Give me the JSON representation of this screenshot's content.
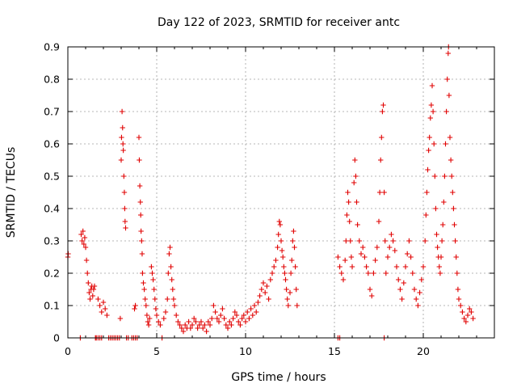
{
  "chart_data": {
    "type": "scatter",
    "title": "Day 122 of 2023, SRMTID for receiver antc",
    "xlabel": "GPS time / hours",
    "ylabel": "SRMTID / TECUs",
    "xlim": [
      0,
      24
    ],
    "ylim": [
      0,
      0.9
    ],
    "x_ticks": [
      0,
      5,
      10,
      15,
      20
    ],
    "y_ticks": [
      0,
      0.1,
      0.2,
      0.3,
      0.4,
      0.5,
      0.6,
      0.7,
      0.8,
      0.9
    ],
    "grid": true,
    "marker": "+",
    "series": [
      {
        "name": "SRMTID",
        "color": "#e00000",
        "points": [
          [
            0.0,
            0.25
          ],
          [
            0.02,
            0.26
          ],
          [
            0.7,
            0.0
          ],
          [
            0.75,
            0.32
          ],
          [
            0.8,
            0.3
          ],
          [
            0.85,
            0.33
          ],
          [
            0.9,
            0.29
          ],
          [
            0.95,
            0.31
          ],
          [
            1.0,
            0.28
          ],
          [
            1.05,
            0.24
          ],
          [
            1.1,
            0.2
          ],
          [
            1.15,
            0.17
          ],
          [
            1.2,
            0.14
          ],
          [
            1.25,
            0.12
          ],
          [
            1.3,
            0.15
          ],
          [
            1.35,
            0.16
          ],
          [
            1.4,
            0.13
          ],
          [
            1.45,
            0.15
          ],
          [
            1.5,
            0.16
          ],
          [
            1.55,
            0.0
          ],
          [
            1.6,
            0.0
          ],
          [
            1.7,
            0.0
          ],
          [
            1.8,
            0.0
          ],
          [
            1.9,
            0.0
          ],
          [
            1.7,
            0.12
          ],
          [
            1.8,
            0.1
          ],
          [
            1.9,
            0.08
          ],
          [
            2.0,
            0.11
          ],
          [
            2.1,
            0.09
          ],
          [
            2.2,
            0.07
          ],
          [
            2.3,
            0.0
          ],
          [
            2.4,
            0.0
          ],
          [
            2.5,
            0.0
          ],
          [
            2.6,
            0.0
          ],
          [
            2.7,
            0.0
          ],
          [
            2.8,
            0.0
          ],
          [
            2.9,
            0.0
          ],
          [
            2.95,
            0.06
          ],
          [
            3.0,
            0.55
          ],
          [
            3.02,
            0.62
          ],
          [
            3.05,
            0.7
          ],
          [
            3.08,
            0.65
          ],
          [
            3.1,
            0.6
          ],
          [
            3.12,
            0.58
          ],
          [
            3.15,
            0.5
          ],
          [
            3.18,
            0.45
          ],
          [
            3.2,
            0.4
          ],
          [
            3.22,
            0.36
          ],
          [
            3.25,
            0.34
          ],
          [
            3.3,
            0.0
          ],
          [
            3.4,
            0.0
          ],
          [
            3.6,
            0.0
          ],
          [
            3.7,
            0.0
          ],
          [
            3.8,
            0.0
          ],
          [
            3.9,
            0.0
          ],
          [
            3.75,
            0.09
          ],
          [
            3.8,
            0.1
          ],
          [
            4.0,
            0.62
          ],
          [
            4.02,
            0.55
          ],
          [
            4.05,
            0.47
          ],
          [
            4.08,
            0.42
          ],
          [
            4.1,
            0.38
          ],
          [
            4.12,
            0.33
          ],
          [
            4.15,
            0.3
          ],
          [
            4.18,
            0.26
          ],
          [
            4.2,
            0.2
          ],
          [
            4.25,
            0.17
          ],
          [
            4.3,
            0.15
          ],
          [
            4.35,
            0.12
          ],
          [
            4.4,
            0.1
          ],
          [
            4.45,
            0.07
          ],
          [
            4.5,
            0.05
          ],
          [
            4.55,
            0.04
          ],
          [
            4.6,
            0.06
          ],
          [
            4.7,
            0.22
          ],
          [
            4.75,
            0.2
          ],
          [
            4.8,
            0.18
          ],
          [
            4.85,
            0.15
          ],
          [
            4.9,
            0.12
          ],
          [
            4.95,
            0.09
          ],
          [
            5.0,
            0.07
          ],
          [
            5.1,
            0.05
          ],
          [
            5.2,
            0.04
          ],
          [
            5.3,
            0.0
          ],
          [
            5.4,
            0.06
          ],
          [
            5.5,
            0.08
          ],
          [
            5.6,
            0.12
          ],
          [
            5.65,
            0.2
          ],
          [
            5.7,
            0.26
          ],
          [
            5.75,
            0.28
          ],
          [
            5.8,
            0.22
          ],
          [
            5.85,
            0.18
          ],
          [
            5.9,
            0.15
          ],
          [
            5.95,
            0.12
          ],
          [
            6.0,
            0.1
          ],
          [
            6.1,
            0.07
          ],
          [
            6.2,
            0.05
          ],
          [
            6.3,
            0.04
          ],
          [
            6.4,
            0.03
          ],
          [
            6.5,
            0.02
          ],
          [
            6.6,
            0.04
          ],
          [
            6.7,
            0.03
          ],
          [
            6.8,
            0.05
          ],
          [
            6.9,
            0.03
          ],
          [
            7.0,
            0.04
          ],
          [
            7.1,
            0.06
          ],
          [
            7.2,
            0.05
          ],
          [
            7.3,
            0.03
          ],
          [
            7.4,
            0.04
          ],
          [
            7.5,
            0.05
          ],
          [
            7.6,
            0.03
          ],
          [
            7.7,
            0.04
          ],
          [
            7.8,
            0.02
          ],
          [
            7.9,
            0.05
          ],
          [
            8.0,
            0.04
          ],
          [
            8.1,
            0.06
          ],
          [
            8.2,
            0.1
          ],
          [
            8.3,
            0.08
          ],
          [
            8.4,
            0.06
          ],
          [
            8.5,
            0.05
          ],
          [
            8.6,
            0.07
          ],
          [
            8.7,
            0.09
          ],
          [
            8.8,
            0.06
          ],
          [
            8.9,
            0.04
          ],
          [
            9.0,
            0.03
          ],
          [
            9.1,
            0.05
          ],
          [
            9.2,
            0.04
          ],
          [
            9.3,
            0.06
          ],
          [
            9.4,
            0.08
          ],
          [
            9.5,
            0.07
          ],
          [
            9.6,
            0.05
          ],
          [
            9.7,
            0.04
          ],
          [
            9.8,
            0.06
          ],
          [
            9.9,
            0.07
          ],
          [
            10.0,
            0.05
          ],
          [
            10.1,
            0.08
          ],
          [
            10.2,
            0.06
          ],
          [
            10.3,
            0.09
          ],
          [
            10.4,
            0.07
          ],
          [
            10.5,
            0.1
          ],
          [
            10.6,
            0.08
          ],
          [
            10.7,
            0.11
          ],
          [
            10.8,
            0.13
          ],
          [
            10.9,
            0.15
          ],
          [
            11.0,
            0.17
          ],
          [
            11.1,
            0.14
          ],
          [
            11.2,
            0.16
          ],
          [
            11.3,
            0.12
          ],
          [
            11.4,
            0.18
          ],
          [
            11.5,
            0.2
          ],
          [
            11.6,
            0.22
          ],
          [
            11.7,
            0.24
          ],
          [
            11.8,
            0.28
          ],
          [
            11.85,
            0.32
          ],
          [
            11.9,
            0.36
          ],
          [
            11.95,
            0.35
          ],
          [
            12.0,
            0.3
          ],
          [
            12.05,
            0.27
          ],
          [
            12.1,
            0.25
          ],
          [
            12.15,
            0.22
          ],
          [
            12.2,
            0.2
          ],
          [
            12.25,
            0.18
          ],
          [
            12.3,
            0.15
          ],
          [
            12.35,
            0.12
          ],
          [
            12.4,
            0.1
          ],
          [
            12.5,
            0.14
          ],
          [
            12.55,
            0.2
          ],
          [
            12.6,
            0.24
          ],
          [
            12.65,
            0.3
          ],
          [
            12.7,
            0.33
          ],
          [
            12.75,
            0.28
          ],
          [
            12.8,
            0.22
          ],
          [
            12.85,
            0.15
          ],
          [
            12.9,
            0.1
          ],
          [
            15.2,
            0.0
          ],
          [
            15.3,
            0.0
          ],
          [
            15.2,
            0.25
          ],
          [
            15.3,
            0.22
          ],
          [
            15.4,
            0.2
          ],
          [
            15.5,
            0.18
          ],
          [
            15.6,
            0.24
          ],
          [
            15.65,
            0.3
          ],
          [
            15.7,
            0.38
          ],
          [
            15.75,
            0.45
          ],
          [
            15.8,
            0.42
          ],
          [
            15.85,
            0.36
          ],
          [
            15.9,
            0.3
          ],
          [
            15.95,
            0.25
          ],
          [
            16.0,
            0.22
          ],
          [
            16.1,
            0.48
          ],
          [
            16.15,
            0.55
          ],
          [
            16.2,
            0.5
          ],
          [
            16.25,
            0.42
          ],
          [
            16.3,
            0.35
          ],
          [
            16.4,
            0.3
          ],
          [
            16.5,
            0.26
          ],
          [
            16.6,
            0.28
          ],
          [
            16.7,
            0.25
          ],
          [
            16.8,
            0.22
          ],
          [
            16.9,
            0.2
          ],
          [
            17.0,
            0.15
          ],
          [
            17.1,
            0.13
          ],
          [
            17.2,
            0.2
          ],
          [
            17.3,
            0.24
          ],
          [
            17.4,
            0.28
          ],
          [
            17.5,
            0.36
          ],
          [
            17.55,
            0.45
          ],
          [
            17.6,
            0.55
          ],
          [
            17.65,
            0.62
          ],
          [
            17.7,
            0.7
          ],
          [
            17.75,
            0.72
          ],
          [
            17.8,
            0.45
          ],
          [
            17.85,
            0.3
          ],
          [
            17.9,
            0.2
          ],
          [
            17.8,
            0.0
          ],
          [
            18.0,
            0.25
          ],
          [
            18.1,
            0.28
          ],
          [
            18.2,
            0.32
          ],
          [
            18.3,
            0.3
          ],
          [
            18.4,
            0.27
          ],
          [
            18.5,
            0.22
          ],
          [
            18.6,
            0.18
          ],
          [
            18.7,
            0.15
          ],
          [
            18.8,
            0.12
          ],
          [
            18.9,
            0.17
          ],
          [
            19.0,
            0.22
          ],
          [
            19.1,
            0.26
          ],
          [
            19.2,
            0.3
          ],
          [
            19.3,
            0.25
          ],
          [
            19.4,
            0.2
          ],
          [
            19.5,
            0.15
          ],
          [
            19.6,
            0.12
          ],
          [
            19.7,
            0.1
          ],
          [
            19.8,
            0.14
          ],
          [
            19.9,
            0.18
          ],
          [
            20.0,
            0.22
          ],
          [
            20.1,
            0.3
          ],
          [
            20.15,
            0.38
          ],
          [
            20.2,
            0.45
          ],
          [
            20.25,
            0.52
          ],
          [
            20.3,
            0.58
          ],
          [
            20.35,
            0.62
          ],
          [
            20.4,
            0.68
          ],
          [
            20.45,
            0.72
          ],
          [
            20.5,
            0.78
          ],
          [
            20.55,
            0.7
          ],
          [
            20.6,
            0.6
          ],
          [
            20.65,
            0.5
          ],
          [
            20.7,
            0.4
          ],
          [
            20.75,
            0.32
          ],
          [
            20.8,
            0.28
          ],
          [
            20.85,
            0.25
          ],
          [
            20.9,
            0.22
          ],
          [
            20.95,
            0.2
          ],
          [
            21.0,
            0.25
          ],
          [
            21.05,
            0.3
          ],
          [
            21.1,
            0.35
          ],
          [
            21.15,
            0.42
          ],
          [
            21.2,
            0.5
          ],
          [
            21.25,
            0.6
          ],
          [
            21.3,
            0.7
          ],
          [
            21.35,
            0.8
          ],
          [
            21.4,
            0.88
          ],
          [
            21.42,
            0.9
          ],
          [
            21.45,
            0.75
          ],
          [
            21.5,
            0.62
          ],
          [
            21.55,
            0.55
          ],
          [
            21.6,
            0.5
          ],
          [
            21.65,
            0.45
          ],
          [
            21.7,
            0.4
          ],
          [
            21.75,
            0.35
          ],
          [
            21.8,
            0.3
          ],
          [
            21.85,
            0.25
          ],
          [
            21.9,
            0.2
          ],
          [
            21.95,
            0.15
          ],
          [
            22.0,
            0.12
          ],
          [
            22.1,
            0.1
          ],
          [
            22.2,
            0.08
          ],
          [
            22.3,
            0.06
          ],
          [
            22.4,
            0.05
          ],
          [
            22.5,
            0.07
          ],
          [
            22.6,
            0.09
          ],
          [
            22.7,
            0.08
          ],
          [
            22.8,
            0.06
          ]
        ]
      }
    ]
  }
}
